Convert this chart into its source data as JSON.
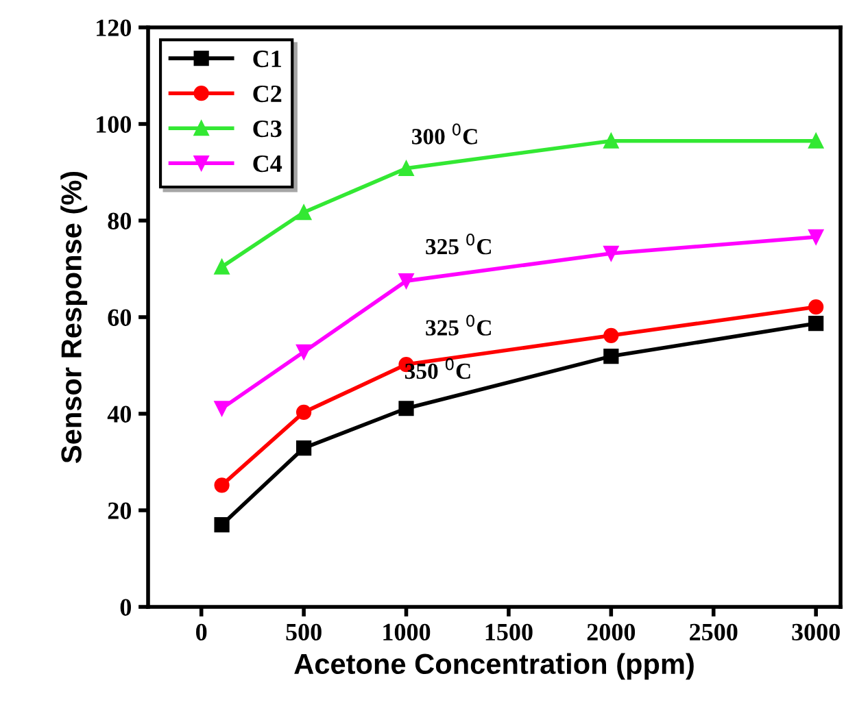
{
  "chart_data": {
    "type": "line",
    "xlabel": "Acetone Concentration (ppm)",
    "ylabel": "Sensor Response (%)",
    "x": [
      100,
      500,
      1000,
      2000,
      3000
    ],
    "series": [
      {
        "name": "C1",
        "color": "#000000",
        "marker": "square",
        "values": [
          17.0,
          32.9,
          41.1,
          51.9,
          58.7
        ]
      },
      {
        "name": "C2",
        "color": "#ff0000",
        "marker": "circle",
        "values": [
          25.2,
          40.3,
          50.2,
          56.2,
          62.1
        ]
      },
      {
        "name": "C3",
        "color": "#33e833",
        "marker": "triangle",
        "values": [
          70.4,
          81.7,
          90.8,
          96.5,
          96.5
        ]
      },
      {
        "name": "C4",
        "color": "#ff00ff",
        "marker": "triangle_down",
        "values": [
          41.1,
          52.8,
          67.5,
          73.2,
          76.6
        ]
      }
    ],
    "annotations": [
      "300 $^{0}$C",
      "325 $^{0}$C",
      "325 $^{0}$C",
      "350 $^{0}$C"
    ],
    "xlim": [
      -260,
      3120
    ],
    "ylim": [
      0,
      120
    ],
    "xticks": [
      0,
      500,
      1000,
      1500,
      2000,
      2500,
      3000
    ],
    "yticks": [
      0,
      20,
      40,
      60,
      80,
      100,
      120
    ],
    "grid": false,
    "legend": "top left",
    "line_style": "solid"
  }
}
